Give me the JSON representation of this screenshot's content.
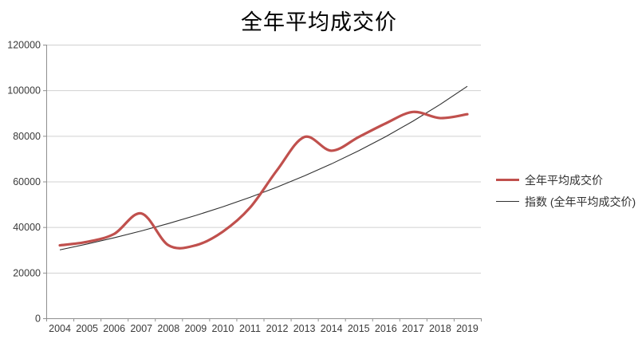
{
  "title": "全年平均成交价",
  "legend": [
    {
      "label": "全年平均成交价",
      "color": "#c0504d"
    },
    {
      "label": "指数 (全年平均成交价)",
      "color": "#303030"
    }
  ],
  "axis": {
    "y_tick_labels": [
      "0",
      "20000",
      "40000",
      "60000",
      "80000",
      "100000",
      "120000"
    ],
    "x_tick_labels": [
      "2004",
      "2005",
      "2006",
      "2007",
      "2008",
      "2009",
      "2010",
      "2011",
      "2012",
      "2013",
      "2014",
      "2015",
      "2016",
      "2017",
      "2018",
      "2019"
    ]
  },
  "colors": {
    "series": "#c0504d",
    "trend": "#303030",
    "gridline": "#d0d0d0",
    "axis_line": "#8f8f8f",
    "tick_text": "#3a3a3a"
  },
  "chart_data": {
    "type": "line",
    "title": "全年平均成交价",
    "categories": [
      "2004",
      "2005",
      "2006",
      "2007",
      "2008",
      "2009",
      "2010",
      "2011",
      "2012",
      "2013",
      "2014",
      "2015",
      "2016",
      "2017",
      "2018",
      "2019"
    ],
    "series": [
      {
        "name": "全年平均成交价",
        "color": "#c0504d",
        "smooth": true,
        "line_width": 3.2,
        "values": [
          32000,
          33500,
          37000,
          46000,
          32000,
          32000,
          38000,
          48500,
          65000,
          79500,
          73500,
          79500,
          85500,
          90500,
          87800,
          89500
        ]
      },
      {
        "name": "指数 (全年平均成交价)",
        "color": "#303030",
        "smooth": false,
        "line_width": 1.1,
        "kind": "exponential-trendline",
        "values": [
          30000,
          32550,
          35310,
          38310,
          41560,
          45080,
          48900,
          53050,
          57550,
          62430,
          67720,
          73460,
          79690,
          86450,
          93780,
          101740
        ]
      }
    ],
    "xlabel": "",
    "ylabel": "",
    "ylim": [
      0,
      120000
    ],
    "ytick_step": 20000,
    "grid": true,
    "legend_position": "right"
  }
}
